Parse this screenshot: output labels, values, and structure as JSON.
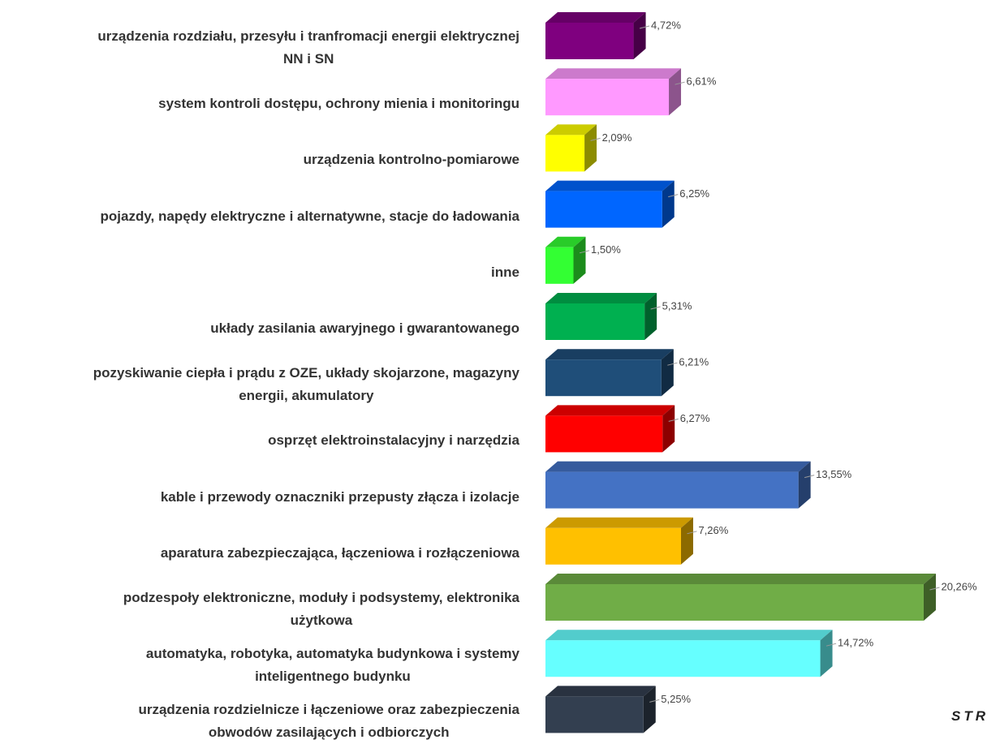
{
  "chart_data": {
    "type": "bar3d-horizontal",
    "categories": [
      "urządzenia rozdziału, przesyłu i tranfromacji energii elektrycznej\nNN i SN",
      "system kontroli dostępu, ochrony mienia i monitoringu",
      "urządzenia kontrolno-pomiarowe",
      "pojazdy, napędy elektryczne i alternatywne, stacje do ładowania",
      "inne",
      "układy zasilania awaryjnego i gwarantowanego",
      "pozyskiwanie ciepła i prądu z OZE, układy skojarzone, magazyny\nenergii, akumulatory",
      "osprzęt elektroinstalacyjny i narzędzia",
      "kable i przewody oznaczniki przepusty złącza  i izolacje",
      "aparatura zabezpieczająca, łączeniowa i rozłączeniowa",
      "podzespoły elektroniczne, moduły i podsystemy, elektronika\nużytkowa",
      "automatyka, robotyka, automatyka budynkowa i systemy\ninteligentnego budynku",
      "urządzenia rozdzielnicze i łączeniowe oraz zabezpieczenia\nobwodów zasilających i odbiorczych"
    ],
    "values": [
      4.72,
      6.61,
      2.09,
      6.25,
      1.5,
      5.31,
      6.21,
      6.27,
      13.55,
      7.26,
      20.26,
      14.72,
      5.25
    ],
    "value_labels": [
      "4,72%",
      "6,61%",
      "2,09%",
      "6,25%",
      "1,50%",
      "5,31%",
      "6,21%",
      "6,27%",
      "13,55%",
      "7,26%",
      "20,26%",
      "14,72%",
      "5,25%"
    ],
    "colors": [
      "#7f007f",
      "#ff99ff",
      "#ffff00",
      "#0066ff",
      "#33ff33",
      "#00b050",
      "#1f4e79",
      "#ff0000",
      "#4472c4",
      "#ffc000",
      "#70ad47",
      "#66ffff",
      "#333f50"
    ],
    "annotation": "STR"
  }
}
